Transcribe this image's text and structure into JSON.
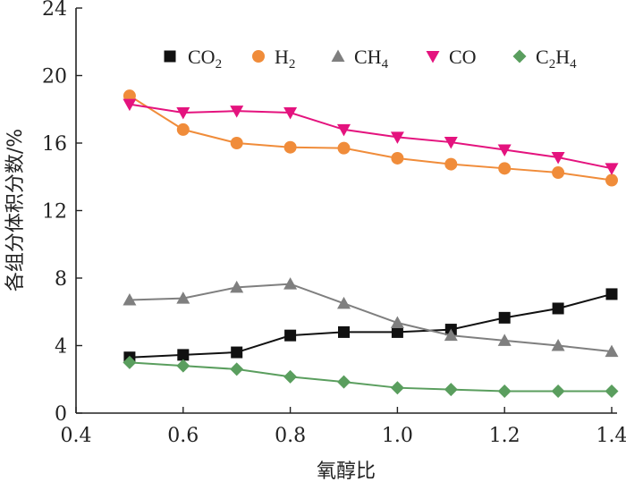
{
  "chart_data": {
    "type": "line",
    "xlabel": "氧醇比",
    "ylabel": "各组分体积分数/%",
    "xlim": [
      0.4,
      1.4
    ],
    "ylim": [
      0,
      24
    ],
    "xticks": [
      "0.4",
      "0.6",
      "0.8",
      "1.0",
      "1.2",
      "1.4"
    ],
    "yticks": [
      "0",
      "4",
      "8",
      "12",
      "16",
      "20",
      "24"
    ],
    "grid": false,
    "legend_position": "top",
    "x": [
      0.5,
      0.6,
      0.7,
      0.8,
      0.9,
      1.0,
      1.1,
      1.2,
      1.3,
      1.4
    ],
    "series": [
      {
        "name": "CO2",
        "base": "CO",
        "sub": "2",
        "sub2": "",
        "base2": "",
        "marker": "square",
        "color": "#111111",
        "line_color": "#111111",
        "values": [
          3.3,
          3.45,
          3.6,
          4.6,
          4.8,
          4.8,
          4.95,
          5.65,
          6.2,
          7.05
        ]
      },
      {
        "name": "H2",
        "base": "H",
        "sub": "2",
        "sub2": "",
        "base2": "",
        "marker": "circle",
        "color": "#F08C3A",
        "line_color": "#F08C3A",
        "values": [
          18.8,
          16.8,
          16.0,
          15.75,
          15.7,
          15.1,
          14.75,
          14.5,
          14.25,
          13.8
        ]
      },
      {
        "name": "CH4",
        "base": "CH",
        "sub": "4",
        "sub2": "",
        "base2": "",
        "marker": "triangle-up",
        "color": "#7F7F7F",
        "line_color": "#7F7F7F",
        "values": [
          6.7,
          6.8,
          7.45,
          7.65,
          6.5,
          5.35,
          4.6,
          4.3,
          4.0,
          3.65
        ]
      },
      {
        "name": "CO",
        "base": "CO",
        "sub": "",
        "sub2": "",
        "base2": "",
        "marker": "triangle-down",
        "color": "#E4137E",
        "line_color": "#E4137E",
        "values": [
          18.3,
          17.8,
          17.9,
          17.8,
          16.8,
          16.35,
          16.05,
          15.6,
          15.15,
          14.5
        ]
      },
      {
        "name": "C2H4",
        "base": "C",
        "sub": "2",
        "base2": "H",
        "sub2": "4",
        "marker": "diamond",
        "color": "#5A9E5E",
        "line_color": "#5A9E5E",
        "values": [
          3.0,
          2.8,
          2.6,
          2.15,
          1.85,
          1.5,
          1.4,
          1.3,
          1.3,
          1.3
        ]
      }
    ]
  }
}
